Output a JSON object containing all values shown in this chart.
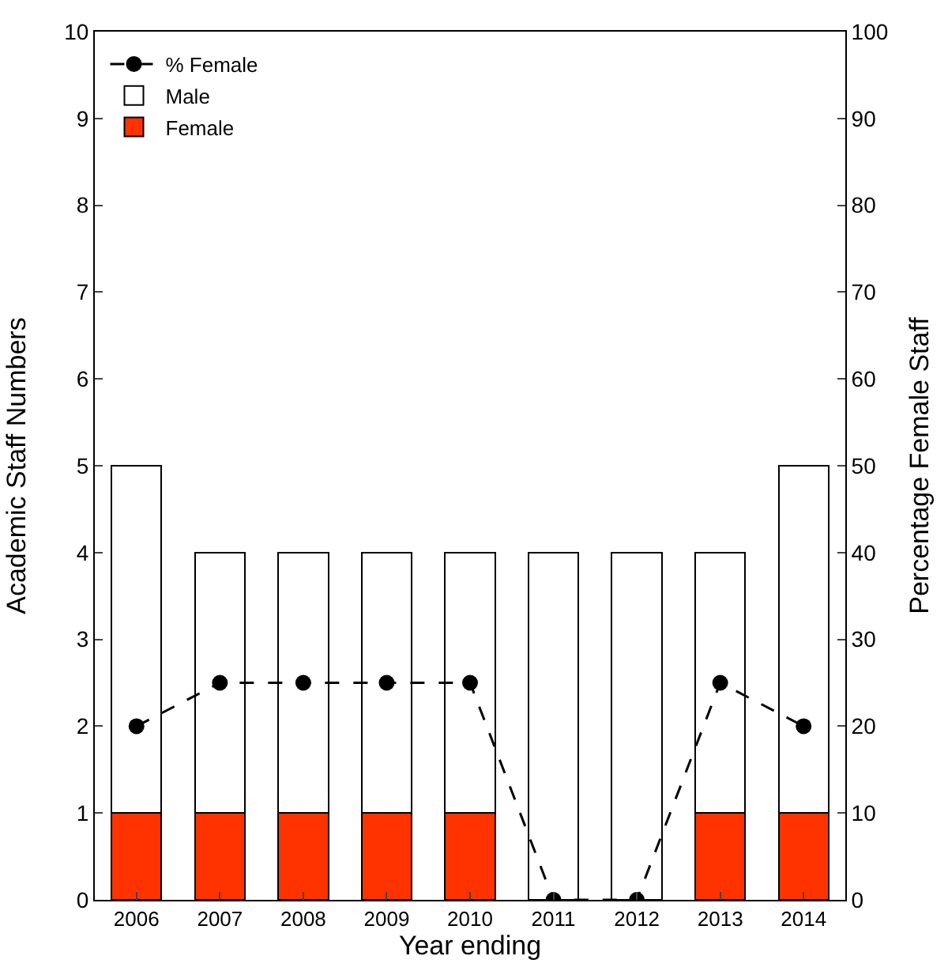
{
  "chart_data": {
    "type": "bar",
    "stacked": true,
    "xlabel": "Year ending",
    "ylabel": "Academic Staff Numbers",
    "y2label": "Percentage Female Staff",
    "categories": [
      "2006",
      "2007",
      "2008",
      "2009",
      "2010",
      "2011",
      "2012",
      "2013",
      "2014"
    ],
    "series": [
      {
        "name": "Female",
        "color": "#ff3300",
        "values": [
          1,
          1,
          1,
          1,
          1,
          0,
          0,
          1,
          1
        ]
      },
      {
        "name": "Male",
        "color": "#ffffff",
        "values": [
          4,
          3,
          3,
          3,
          3,
          4,
          4,
          3,
          4
        ]
      },
      {
        "name": "% Female",
        "type": "line",
        "axis": "y2",
        "color": "#000000",
        "marker": "circle",
        "line_style": "dashed",
        "values": [
          20,
          25,
          25,
          25,
          25,
          0,
          0,
          25,
          20
        ]
      }
    ],
    "ylim": [
      0,
      10
    ],
    "yticks": [
      0,
      1,
      2,
      3,
      4,
      5,
      6,
      7,
      8,
      9,
      10
    ],
    "y2lim": [
      0,
      100
    ],
    "y2ticks": [
      0,
      10,
      20,
      30,
      40,
      50,
      60,
      70,
      80,
      90,
      100
    ],
    "grid": false,
    "legend": "top left"
  }
}
